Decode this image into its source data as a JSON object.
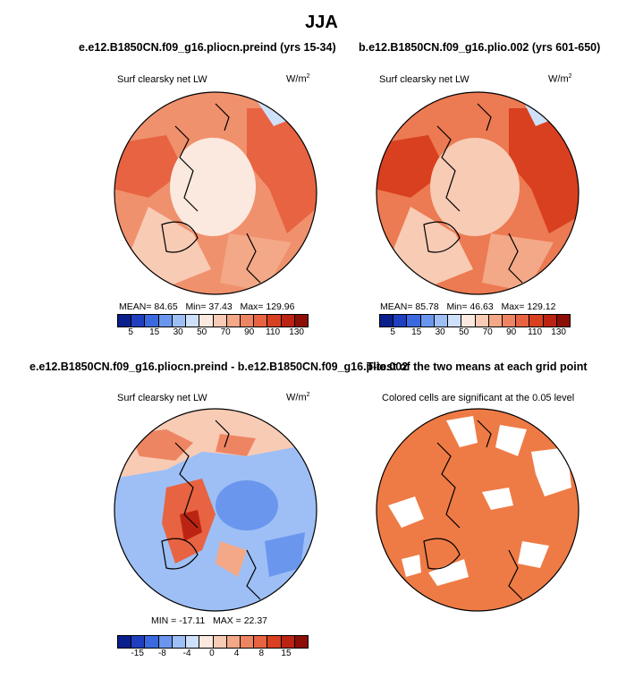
{
  "main_title": "JJA",
  "panels": {
    "top_left": {
      "title": "e.e12.B1850CN.f09_g16.pliocn.preind (yrs 15-34)",
      "variable": "Surf clearsky net LW",
      "units": "W/m",
      "units_sup": "2",
      "stats": {
        "mean": "84.65",
        "min": "37.43",
        "max": "129.96"
      },
      "stats_text": {
        "mean_label": "MEAN=",
        "min_label": "Min=",
        "max_label": "Max="
      }
    },
    "top_right": {
      "title": "b.e12.B1850CN.f09_g16.plio.002 (yrs 601-650)",
      "variable": "Surf clearsky net LW",
      "units": "W/m",
      "units_sup": "2",
      "stats": {
        "mean": "85.78",
        "min": "46.63",
        "max": "129.12"
      },
      "stats_text": {
        "mean_label": "MEAN=",
        "min_label": "Min=",
        "max_label": "Max="
      }
    },
    "bottom_left": {
      "title": "e.e12.B1850CN.f09_g16.pliocn.preind - b.e12.B1850CN.f09_g16.plio.002",
      "variable": "Surf clearsky net LW",
      "units": "W/m",
      "units_sup": "2",
      "stats": {
        "min": "-17.11",
        "max": "22.37"
      },
      "stats_text": {
        "min_label": "MIN =",
        "max_label": "MAX ="
      }
    },
    "bottom_right": {
      "title": "T-test of the two means at each grid point",
      "subtitle": "Colored cells are significant at the 0.05 level"
    }
  },
  "chart_data": [
    {
      "type": "heatmap",
      "projection": "north-polar-stereographic",
      "title": "e.e12.B1850CN.f09_g16.pliocn.preind (yrs 15-34)",
      "variable": "Surf clearsky net LW",
      "units": "W/m2",
      "colorbar_ticks": [
        "5",
        "15",
        "30",
        "50",
        "70",
        "90",
        "110",
        "130"
      ],
      "colors": [
        "#0a1e8c",
        "#1f3fc0",
        "#3b6ae0",
        "#6a96ee",
        "#9dbff5",
        "#cfe0fa",
        "#fbe9df",
        "#f8cbb5",
        "#f3a887",
        "#ee8562",
        "#e86341",
        "#d9401f",
        "#bb2412",
        "#8c0e06"
      ],
      "stats": {
        "mean": 84.65,
        "min": 37.43,
        "max": 129.96
      }
    },
    {
      "type": "heatmap",
      "projection": "north-polar-stereographic",
      "title": "b.e12.B1850CN.f09_g16.plio.002 (yrs 601-650)",
      "variable": "Surf clearsky net LW",
      "units": "W/m2",
      "colorbar_ticks": [
        "5",
        "15",
        "30",
        "50",
        "70",
        "90",
        "110",
        "130"
      ],
      "colors": [
        "#0a1e8c",
        "#1f3fc0",
        "#3b6ae0",
        "#6a96ee",
        "#9dbff5",
        "#cfe0fa",
        "#fbe9df",
        "#f8cbb5",
        "#f3a887",
        "#ee8562",
        "#e86341",
        "#d9401f",
        "#bb2412",
        "#8c0e06"
      ],
      "stats": {
        "mean": 85.78,
        "min": 46.63,
        "max": 129.12
      }
    },
    {
      "type": "heatmap",
      "projection": "north-polar-stereographic",
      "title": "e.e12.B1850CN.f09_g16.pliocn.preind - b.e12.B1850CN.f09_g16.plio.002",
      "variable": "Surf clearsky net LW",
      "units": "W/m2",
      "colorbar_ticks": [
        "-15",
        "-8",
        "-4",
        "0",
        "4",
        "8",
        "15"
      ],
      "colors": [
        "#0a1e8c",
        "#1f3fc0",
        "#3b6ae0",
        "#6a96ee",
        "#9dbff5",
        "#cfe0fa",
        "#fbe9df",
        "#f8cbb5",
        "#f3a887",
        "#ee8562",
        "#e86341",
        "#d9401f",
        "#bb2412",
        "#8c0e06"
      ],
      "stats": {
        "min": -17.11,
        "max": 22.37
      }
    },
    {
      "type": "heatmap",
      "projection": "north-polar-stereographic",
      "title": "T-test of the two means at each grid point",
      "subtitle": "Colored cells are significant at the 0.05 level",
      "significance_color": "#ee7b45"
    }
  ],
  "colors": {
    "land_fill_tl": "#f8d6c4",
    "ocean_fill_tl": "#f0916d",
    "ocean_fill_tr": "#ec7a52",
    "diff_base": "#9dbff5",
    "sig_color": "#ee7b45"
  }
}
